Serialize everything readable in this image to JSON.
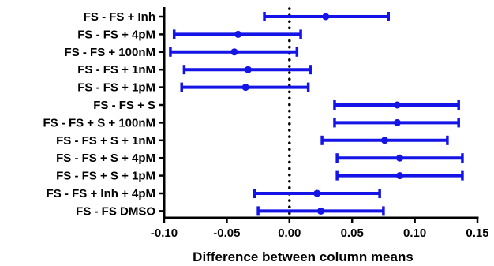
{
  "chart_data": {
    "type": "scatter",
    "subtype": "forest-plot-confidence-intervals",
    "xlabel": "Difference between column means",
    "xlim": [
      -0.1,
      0.15
    ],
    "xticks": [
      "-0.10",
      "-0.05",
      "0.00",
      "0.05",
      "0.10",
      "0.15"
    ],
    "xtick_values": [
      -0.1,
      -0.05,
      0.0,
      0.05,
      0.1,
      0.15
    ],
    "reference_line": 0.0,
    "categories": [
      "FS - FS + Inh",
      "FS - FS + 4pM",
      "FS - FS + 100nM",
      "FS - FS + 1nM",
      "FS - FS + 1pM",
      "FS - FS + S",
      "FS - FS + S + 100nM",
      "FS - FS + S + 1nM",
      "FS - FS + S + 4pM",
      "FS - FS + S + 1pM",
      "FS - FS + Inh + 4pM",
      "FS - FS DMSO"
    ],
    "values": [
      0.029,
      -0.041,
      -0.044,
      -0.033,
      -0.035,
      0.086,
      0.086,
      0.076,
      0.088,
      0.088,
      0.022,
      0.025
    ],
    "lower": [
      -0.02,
      -0.092,
      -0.095,
      -0.084,
      -0.086,
      0.036,
      0.036,
      0.026,
      0.038,
      0.038,
      -0.028,
      -0.025
    ],
    "upper": [
      0.079,
      0.009,
      0.006,
      0.017,
      0.015,
      0.135,
      0.135,
      0.126,
      0.138,
      0.138,
      0.072,
      0.075
    ],
    "colors": {
      "series": "#1414e6",
      "axis": "#000000",
      "reference": "#000000"
    },
    "grid": false
  }
}
